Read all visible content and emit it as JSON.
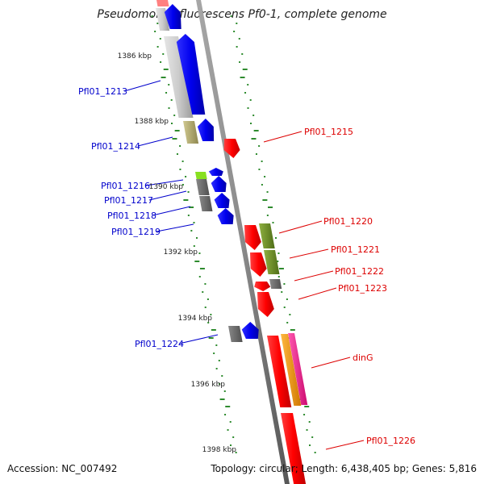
{
  "title": "Pseudomonas fluorescens Pf0-1, complete genome",
  "footer": {
    "accession": "Accession: NC_007492",
    "summary": "Topology: circular; Length: 6,438,405 bp; Genes: 5,816"
  },
  "ticks": [
    "1386 kbp",
    "1388 kbp",
    "1390 kbp",
    "1392 kbp",
    "1394 kbp",
    "1396 kbp",
    "1398 kbp"
  ],
  "genes_left": [
    "Pfl01_1213",
    "Pfl01_1214",
    "Pfl01_1216",
    "Pfl01_1217",
    "Pfl01_1218",
    "Pfl01_1219",
    "Pfl01_1224"
  ],
  "genes_right": [
    "Pfl01_1215",
    "Pfl01_1220",
    "Pfl01_1221",
    "Pfl01_1222",
    "Pfl01_1223",
    "dinG",
    "Pfl01_1226"
  ],
  "colors": {
    "label_forward": "#0000cc",
    "label_reverse": "#dd0000",
    "backbone": "#8a8a8a",
    "dots": "#2e8b2e",
    "blue": "#0000ee",
    "red": "#ff0000",
    "gray": "#666666",
    "light_gray": "#c8c8c8",
    "khaki": "#b8b070",
    "olive": "#6b8e23",
    "lime": "#88e020",
    "orange": "#ff9900",
    "magenta": "#ff1493",
    "pink": "#ff8080"
  }
}
